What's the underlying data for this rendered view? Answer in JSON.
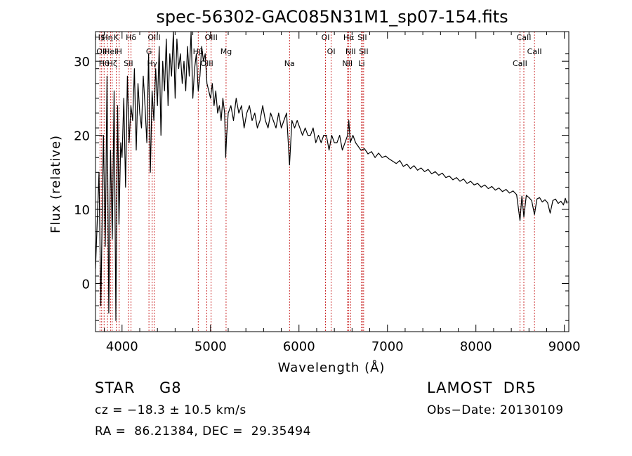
{
  "chart_data": {
    "type": "line",
    "title": "spec-56302-GAC085N31M1_sp07-154.fits",
    "xlabel": "Wavelength (Å)",
    "ylabel": "Flux (relative)",
    "xlim": [
      3700,
      9050
    ],
    "ylim": [
      -6.5,
      34
    ],
    "xticks": [
      4000,
      5000,
      6000,
      7000,
      8000,
      9000
    ],
    "yticks": [
      0,
      10,
      20,
      30
    ],
    "grid": false,
    "line_color": "#000000",
    "marker_color": "#c00000",
    "series": [
      {
        "x": [
          3700,
          3740,
          3760,
          3790,
          3810,
          3830,
          3850,
          3870,
          3890,
          3910,
          3930,
          3950,
          3965,
          3985,
          4000,
          4020,
          4040,
          4060,
          4080,
          4100,
          4120,
          4140,
          4160,
          4180,
          4200,
          4220,
          4240,
          4260,
          4280,
          4300,
          4320,
          4340,
          4360,
          4380,
          4400,
          4420,
          4440,
          4460,
          4480,
          4500,
          4520,
          4540,
          4560,
          4580,
          4600,
          4620,
          4640,
          4660,
          4680,
          4700,
          4720,
          4740,
          4760,
          4780,
          4800,
          4820,
          4840,
          4861,
          4880,
          4900,
          4920,
          4940,
          4960,
          4980,
          5000,
          5020,
          5040,
          5060,
          5080,
          5100,
          5120,
          5140,
          5160,
          5172,
          5183,
          5200,
          5230,
          5260,
          5290,
          5320,
          5350,
          5380,
          5410,
          5440,
          5470,
          5500,
          5530,
          5560,
          5590,
          5620,
          5650,
          5680,
          5710,
          5740,
          5770,
          5800,
          5830,
          5860,
          5893,
          5920,
          5950,
          5980,
          6010,
          6040,
          6070,
          6100,
          6130,
          6160,
          6190,
          6220,
          6250,
          6280,
          6310,
          6340,
          6370,
          6400,
          6430,
          6460,
          6490,
          6520,
          6550,
          6563,
          6580,
          6610,
          6640,
          6670,
          6700,
          6740,
          6780,
          6820,
          6860,
          6900,
          6940,
          6980,
          7020,
          7060,
          7100,
          7140,
          7180,
          7220,
          7260,
          7300,
          7340,
          7380,
          7420,
          7460,
          7500,
          7540,
          7580,
          7620,
          7660,
          7700,
          7740,
          7780,
          7820,
          7860,
          7900,
          7940,
          7980,
          8020,
          8060,
          8100,
          8140,
          8180,
          8220,
          8260,
          8300,
          8340,
          8380,
          8420,
          8460,
          8498,
          8520,
          8542,
          8570,
          8600,
          8630,
          8662,
          8690,
          8720,
          8750,
          8780,
          8810,
          8840,
          8870,
          8900,
          8930,
          8960,
          8990,
          9010,
          9030
        ],
        "y": [
          2,
          15,
          -3,
          20,
          5,
          28,
          -4,
          18,
          6,
          26,
          -5,
          24,
          8,
          19,
          17,
          25,
          13,
          28,
          19,
          24,
          22,
          29,
          18,
          27,
          23,
          21,
          28,
          24,
          19,
          31,
          15,
          26,
          22,
          29,
          24,
          32,
          20,
          30,
          26,
          33,
          24,
          31,
          28,
          35,
          25,
          33,
          29,
          31,
          27,
          30,
          26,
          32,
          28,
          34,
          25,
          29,
          31,
          26,
          28,
          32,
          30,
          31,
          27,
          26,
          25,
          27,
          24,
          26,
          23,
          24,
          22,
          25,
          23,
          17,
          20,
          23,
          24,
          22,
          25,
          23,
          24,
          21,
          23,
          24,
          22,
          23,
          21,
          22,
          24,
          22,
          21,
          23,
          22,
          21,
          23,
          21,
          22,
          23,
          16,
          22,
          21,
          22,
          21,
          20,
          21,
          20,
          20,
          21,
          19,
          20,
          19,
          20,
          20,
          18,
          20,
          19,
          19,
          20,
          18,
          19,
          20,
          22,
          19,
          20,
          19,
          18.5,
          18,
          18.2,
          17.5,
          17.8,
          17,
          17.6,
          17,
          17.2,
          16.8,
          16.5,
          16.2,
          16.6,
          15.8,
          16.1,
          15.5,
          15.9,
          15.3,
          15.6,
          15.1,
          15.4,
          14.8,
          15.1,
          14.6,
          14.9,
          14.3,
          14.5,
          14,
          14.3,
          13.8,
          14.1,
          13.5,
          13.8,
          13.3,
          13.5,
          13,
          13.3,
          12.8,
          13.1,
          12.6,
          12.9,
          12.4,
          12.7,
          12.2,
          12.5,
          12,
          8.5,
          11.8,
          9,
          11.9,
          11.6,
          11.2,
          9.3,
          11.4,
          11.6,
          11,
          11.3,
          10.9,
          9.5,
          11.2,
          11.4,
          10.8,
          11.1,
          10.6,
          11.5,
          10.8
        ]
      }
    ],
    "lines": [
      {
        "x": 3750,
        "label": "H$"
      },
      {
        "x": 3770,
        "label": "OII"
      },
      {
        "x": 3797,
        "label": "Hθ"
      },
      {
        "x": 3835,
        "label": "Hη"
      },
      {
        "x": 3869,
        "label": "HeI"
      },
      {
        "x": 3889,
        "label": "Hζ"
      },
      {
        "x": 3934,
        "label": "K"
      },
      {
        "x": 3968,
        "label": "H"
      },
      {
        "x": 4072,
        "label": "SII"
      },
      {
        "x": 4102,
        "label": "Hδ"
      },
      {
        "x": 4304,
        "label": "G"
      },
      {
        "x": 4341,
        "label": "Hγ"
      },
      {
        "x": 4363,
        "label": "OIII"
      },
      {
        "x": 4861,
        "label": "Hβ"
      },
      {
        "x": 4959,
        "label": "OIII"
      },
      {
        "x": 5007,
        "label": "OIII"
      },
      {
        "x": 5176,
        "label": "Mg"
      },
      {
        "x": 5893,
        "label": "Na"
      },
      {
        "x": 6300,
        "label": "OI"
      },
      {
        "x": 6364,
        "label": "OI"
      },
      {
        "x": 6548,
        "label": "NII"
      },
      {
        "x": 6563,
        "label": "Hα"
      },
      {
        "x": 6583,
        "label": "NII"
      },
      {
        "x": 6708,
        "label": "Li"
      },
      {
        "x": 6716,
        "label": "SII"
      },
      {
        "x": 6731,
        "label": "SII"
      },
      {
        "x": 8498,
        "label": "CaII"
      },
      {
        "x": 8542,
        "label": "CaII"
      },
      {
        "x": 8662,
        "label": "CaII"
      }
    ]
  },
  "info": {
    "obj_class": "STAR",
    "subclass": "G8",
    "cz": "cz = −18.3 ± 10.5 km/s",
    "coords": "RA =  86.21384, DEC =  29.35494",
    "survey": "LAMOST  DR5",
    "obs_date": "Obs−Date: 20130109"
  }
}
